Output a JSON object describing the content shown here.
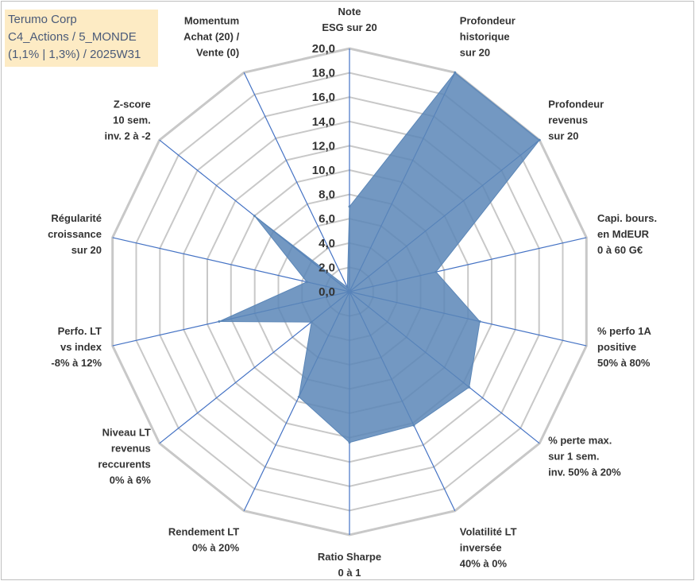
{
  "info_box": {
    "line1": "Terumo Corp",
    "line2": "C4_Actions / 5_MONDE",
    "line3": "(1,1% | 1,3%) / 2025W31"
  },
  "colors": {
    "fill": "#5b86b7",
    "axis_line": "#4472c4",
    "grid": "#c8c8c8",
    "info_bg": "#fdebc4"
  },
  "chart_data": {
    "type": "radar",
    "rmin": 0,
    "rmax": 20,
    "tick_step": 2,
    "tick_labels": [
      "0,0",
      "2,0",
      "4,0",
      "6,0",
      "8,0",
      "10,0",
      "12,0",
      "14,0",
      "16,0",
      "18,0",
      "20,0"
    ],
    "axes": [
      {
        "label": [
          "Note",
          "ESG sur 20"
        ],
        "value": 7.0
      },
      {
        "label": [
          "Profondeur",
          "historique",
          "sur 20"
        ],
        "value": 20.0
      },
      {
        "label": [
          "Profondeur",
          "revenus",
          "sur 20"
        ],
        "value": 20.0
      },
      {
        "label": [
          "Capi. bours.",
          "en MdEUR",
          "0 à 60 G€"
        ],
        "value": 7.3
      },
      {
        "label": [
          "% perfo 1A",
          "positive",
          "50% à 80%"
        ],
        "value": 11.0
      },
      {
        "label": [
          "% perte max.",
          "sur 1 sem.",
          "inv. 50% à 20%"
        ],
        "value": 12.6
      },
      {
        "label": [
          "Volatilité LT",
          "inversée",
          "40% à 0%"
        ],
        "value": 12.2
      },
      {
        "label": [
          "Ratio Sharpe",
          "0 à 1"
        ],
        "value": 12.4
      },
      {
        "label": [
          "Rendement LT",
          "0% à 20%"
        ],
        "value": 9.6
      },
      {
        "label": [
          "Niveau LT",
          "revenus",
          "reccurents",
          "0% à 6%"
        ],
        "value": 4.0
      },
      {
        "label": [
          "Perfo. LT",
          "vs index",
          "-8% à 12%"
        ],
        "value": 11.0
      },
      {
        "label": [
          "Régularité",
          "croissance",
          "sur 20"
        ],
        "value": 3.6
      },
      {
        "label": [
          "Z-score",
          "10 sem.",
          "inv. 2 à -2"
        ],
        "value": 10.0
      },
      {
        "label": [
          "Momentum",
          "Achat (20) /",
          "Vente (0)"
        ],
        "value": 0.4
      }
    ]
  }
}
